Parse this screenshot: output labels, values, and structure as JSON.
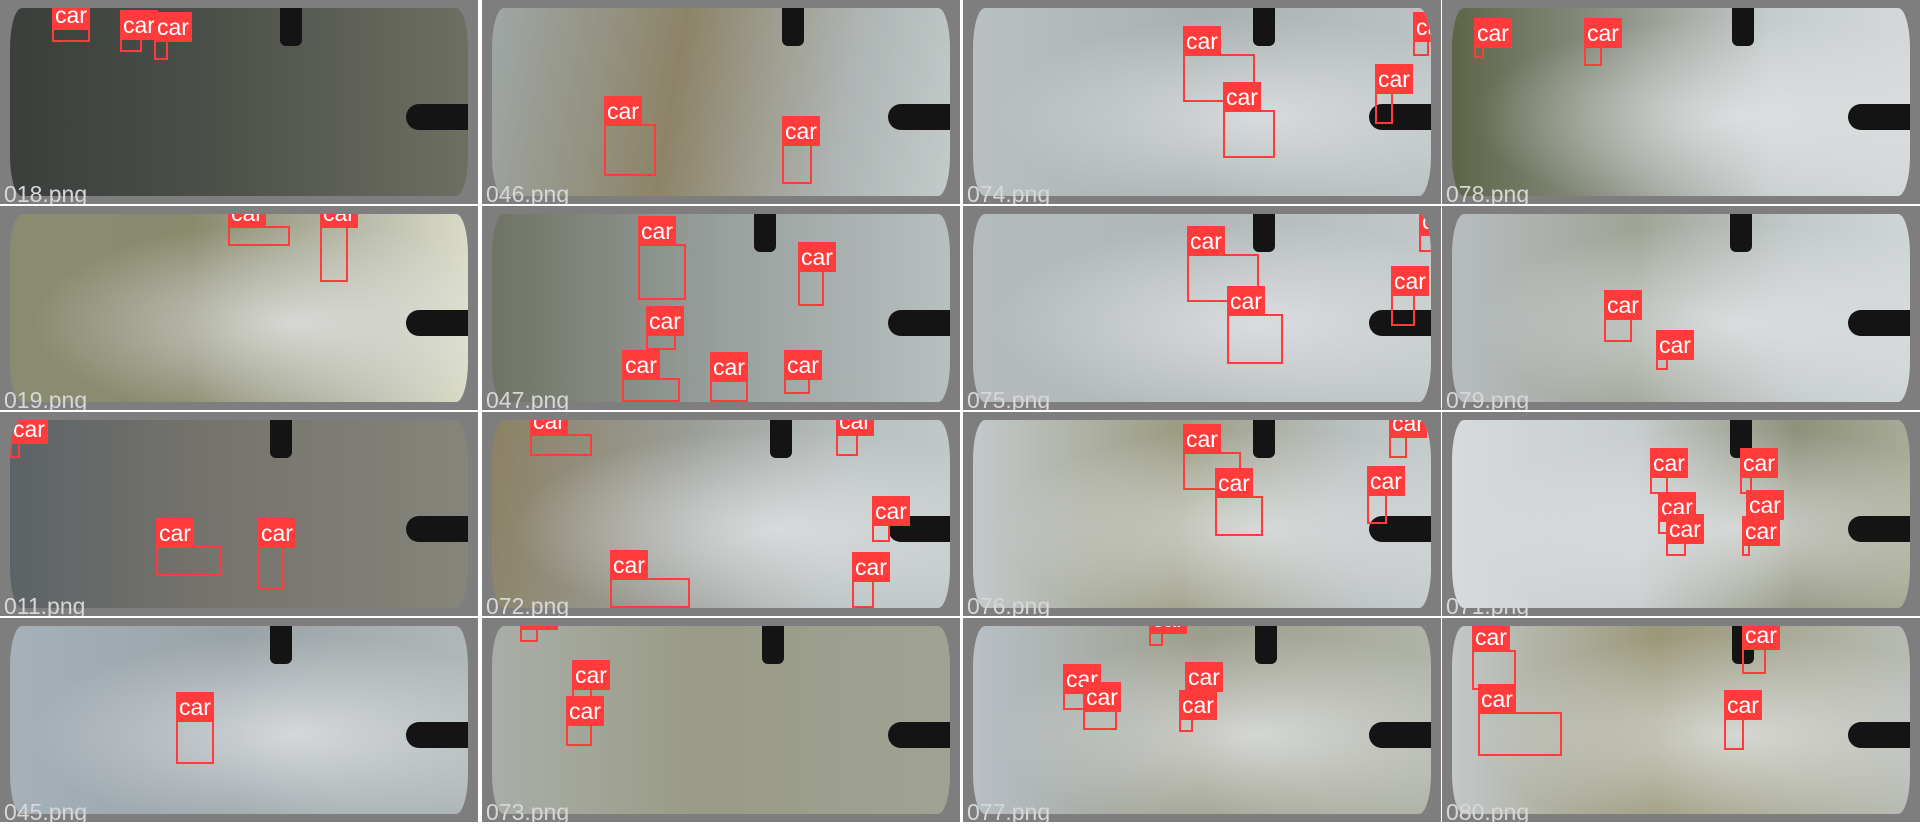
{
  "class_label": "car",
  "colors": {
    "box": "#ff3b3b",
    "frame": "#7e7e7e",
    "filename_text": "#d7d7d7"
  },
  "tiles": [
    {
      "filename": "018.png",
      "bg": "linear-gradient(90deg,#3a3f3c 0%,#4c5049 45%,#6d6f62 100%)",
      "detections": 3
    },
    {
      "filename": "046.png",
      "bg": "linear-gradient(100deg,#9fa7a6 0%,#8d8468 40%,#aeb4b3 75%,#c4cac9 100%)",
      "detections": 2
    },
    {
      "filename": "074.png",
      "bg": "linear-gradient(90deg,#b9c0c1 0%,#a9b0b0 50%,#bcc3c4 100%)",
      "detections": 4
    },
    {
      "filename": "078.png",
      "bg": "linear-gradient(90deg,#5d6548 0%,#8c9184 35%,#c6cccd 70%,#d4d8d9 100%)",
      "detections": 2
    },
    {
      "filename": "019.png",
      "bg": "linear-gradient(90deg,#8a8c71 0%,#8a8a6d 40%,#bdbfae 80%,#dadbc6 100%)",
      "detections": 2
    },
    {
      "filename": "047.png",
      "bg": "linear-gradient(90deg,#6f7364 0%,#98a09e 50%,#b8bfbf 100%)",
      "detections": 6
    },
    {
      "filename": "075.png",
      "bg": "linear-gradient(90deg,#b4bbbd 0%,#b2b8b9 50%,#c2c8c9 100%)",
      "detections": 4
    },
    {
      "filename": "079.png",
      "bg": "linear-gradient(90deg,#b7bdbf 0%,#9fa497 40%,#c3c9cb 75%,#d0d5d6 100%)",
      "detections": 2
    },
    {
      "filename": "011.png",
      "bg": "linear-gradient(90deg,#5c6366 0%,#74726c 40%,#85857b 100%)",
      "detections": 3
    },
    {
      "filename": "072.png",
      "bg": "linear-gradient(100deg,#8b8164 0%,#9a9c96 40%,#b9c0c0 75%,#c3c9ca 100%)",
      "detections": 5
    },
    {
      "filename": "076.png",
      "bg": "linear-gradient(90deg,#c3c9cb 0%,#9c9c82 45%,#b8bebe 80%,#c6cbcc 100%)",
      "detections": 4
    },
    {
      "filename": "071.png",
      "bg": "linear-gradient(90deg,#d6dadc 0%,#c8cdcf 40%,#8e927b 75%,#a8ab95 100%)",
      "detections": 6
    },
    {
      "filename": "045.png",
      "bg": "linear-gradient(90deg,#a6b0b8 0%,#9aa3a7 50%,#b0b7b8 100%)",
      "detections": 1
    },
    {
      "filename": "073.png",
      "bg": "linear-gradient(90deg,#a9aea8 0%,#9a9b86 45%,#a0a294 100%)",
      "detections": 3
    },
    {
      "filename": "077.png",
      "bg": "linear-gradient(90deg,#b7c0c6 0%,#9c9d8b 50%,#b0b4a9 100%)",
      "detections": 5
    },
    {
      "filename": "080.png",
      "bg": "linear-gradient(90deg,#c3c8c9 0%,#9b9878 45%,#b7bbb4 100%)",
      "detections": 4
    }
  ]
}
